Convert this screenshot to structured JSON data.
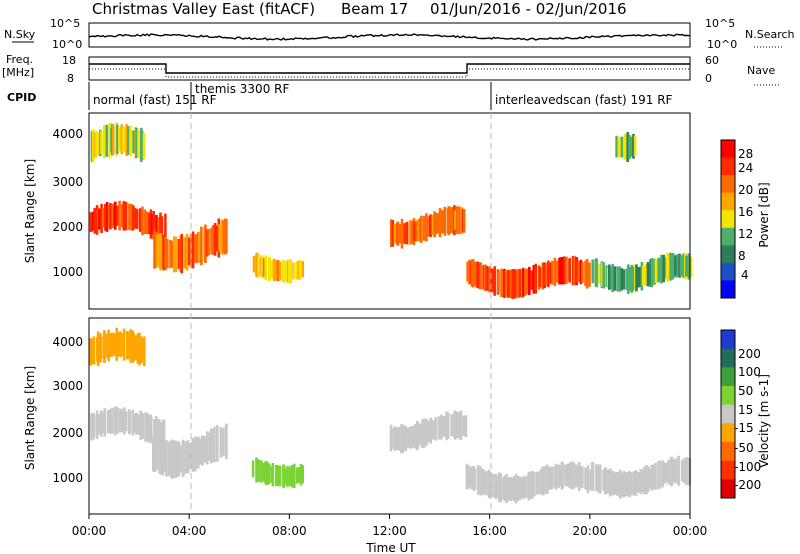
{
  "title": "Christmas Valley East (fitACF)",
  "beam_text": "Beam 17",
  "date_text": "01/Jun/2016 - 02/Jun/2016",
  "nsky": {
    "label": "N.Sky",
    "ticks": [
      "10^5",
      "10^0"
    ],
    "right_ticks": [
      "10^5",
      "10^0"
    ],
    "right_label": "N.Search"
  },
  "freq": {
    "label_line1": "Freq.",
    "label_line2": "[MHz]",
    "ticks": [
      "18",
      "8"
    ],
    "right_ticks": [
      "60",
      "0"
    ],
    "right_label": "Nave"
  },
  "cpid": {
    "label": "CPID",
    "segments": [
      {
        "text": "normal (fast) 151 RF"
      },
      {
        "text": "themis 3300 RF"
      },
      {
        "text": "interleavedscan (fast) 191 RF"
      }
    ]
  },
  "x_ticks": [
    "00:00",
    "04:00",
    "08:00",
    "12:00",
    "16:00",
    "20:00",
    "00:00"
  ],
  "x_label": "Time UT",
  "colors": {
    "power": [
      "#0000ff",
      "#1e50c8",
      "#2e7d5a",
      "#4caf6e",
      "#f5e400",
      "#ffa500",
      "#ff6a00",
      "#ff2a00",
      "#ff0000"
    ],
    "velocity": [
      "#1e3ad0",
      "#1f6e5a",
      "#3da03d",
      "#7cd334",
      "#c8c8c8",
      "#ffa500",
      "#ff6a00",
      "#ff3000",
      "#e00000"
    ]
  },
  "chart_data": [
    {
      "type": "heatmap",
      "panel": "power",
      "ylabel": "Slant Range [km]",
      "xlabel": "",
      "yticks": [
        "1000",
        "2000",
        "3000",
        "4000"
      ],
      "ylim": [
        200,
        4500
      ],
      "xlim": [
        0,
        24
      ],
      "colorbar_label": "Power [dB]",
      "colorbar_ticks": [
        "4",
        "8",
        "12",
        "16",
        "20",
        "24",
        "28"
      ],
      "colorbar_range": [
        0,
        30
      ],
      "regions": [
        {
          "t0": 0.0,
          "t1": 3.0,
          "r0": 1800,
          "r1": 2400,
          "level": 24
        },
        {
          "t0": 0.0,
          "t1": 2.2,
          "r0": 3400,
          "r1": 4100,
          "level": 14
        },
        {
          "t0": 2.5,
          "t1": 5.5,
          "r0": 1200,
          "r1": 2000,
          "level": 22
        },
        {
          "t0": 6.5,
          "t1": 8.5,
          "r0": 900,
          "r1": 1400,
          "level": 18
        },
        {
          "t0": 12.0,
          "t1": 15.0,
          "r0": 1700,
          "r1": 2300,
          "level": 22
        },
        {
          "t0": 15.0,
          "t1": 20.0,
          "r0": 600,
          "r1": 1200,
          "level": 24
        },
        {
          "t0": 20.0,
          "t1": 24.0,
          "r0": 700,
          "r1": 1300,
          "level": 12
        },
        {
          "t0": 21.0,
          "t1": 21.8,
          "r0": 3600,
          "r1": 4200,
          "level": 12
        }
      ]
    },
    {
      "type": "heatmap",
      "panel": "velocity",
      "ylabel": "Slant Range [km]",
      "xlabel": "Time UT",
      "yticks": [
        "1000",
        "2000",
        "3000",
        "4000"
      ],
      "ylim": [
        200,
        4500
      ],
      "xlim": [
        0,
        24
      ],
      "colorbar_label": "Velocity [m s-1]",
      "colorbar_ticks": [
        "200",
        "100",
        "50",
        "15",
        "-15",
        "-50",
        "-100",
        "-200"
      ],
      "colorbar_range": [
        -250,
        250
      ],
      "regions": [
        {
          "t0": 0.0,
          "t1": 3.0,
          "r0": 1800,
          "r1": 2400,
          "level": 0
        },
        {
          "t0": 0.0,
          "t1": 2.2,
          "r0": 3400,
          "r1": 4100,
          "level": -30
        },
        {
          "t0": 2.5,
          "t1": 5.5,
          "r0": 1200,
          "r1": 2000,
          "level": 0
        },
        {
          "t0": 6.5,
          "t1": 8.5,
          "r0": 900,
          "r1": 1400,
          "level": 40
        },
        {
          "t0": 12.0,
          "t1": 15.0,
          "r0": 1700,
          "r1": 2300,
          "level": 0
        },
        {
          "t0": 15.0,
          "t1": 20.0,
          "r0": 600,
          "r1": 1200,
          "level": 0
        },
        {
          "t0": 20.0,
          "t1": 24.0,
          "r0": 700,
          "r1": 1300,
          "level": 0
        }
      ]
    }
  ]
}
